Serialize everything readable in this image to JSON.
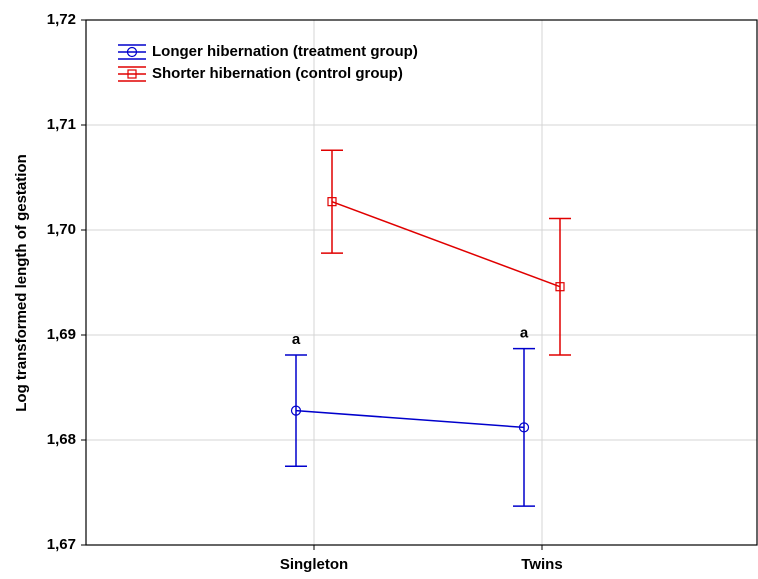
{
  "chart_data": {
    "type": "errorbar-line",
    "ylabel": "Log transformed length of gestation",
    "categories": [
      "Singleton",
      "Twins"
    ],
    "series": [
      {
        "name": "Longer hibernation (treatment group)",
        "color": "#0000cc",
        "marker": "circle",
        "values": [
          1.6828,
          1.6812
        ],
        "errors": [
          0.0053,
          0.0075
        ]
      },
      {
        "name": "Shorter hibernation (control group)",
        "color": "#e00000",
        "marker": "square",
        "values": [
          1.7027,
          1.6946
        ],
        "errors": [
          0.0049,
          0.0065
        ]
      }
    ],
    "annotations": [
      "a",
      "a"
    ],
    "ylim": [
      1.67,
      1.72
    ],
    "yticks": [
      {
        "value": 1.67,
        "label": "1,67"
      },
      {
        "value": 1.68,
        "label": "1,68"
      },
      {
        "value": 1.69,
        "label": "1,69"
      },
      {
        "value": 1.7,
        "label": "1,70"
      },
      {
        "value": 1.71,
        "label": "1,71"
      },
      {
        "value": 1.72,
        "label": "1,72"
      }
    ],
    "grid": true
  }
}
